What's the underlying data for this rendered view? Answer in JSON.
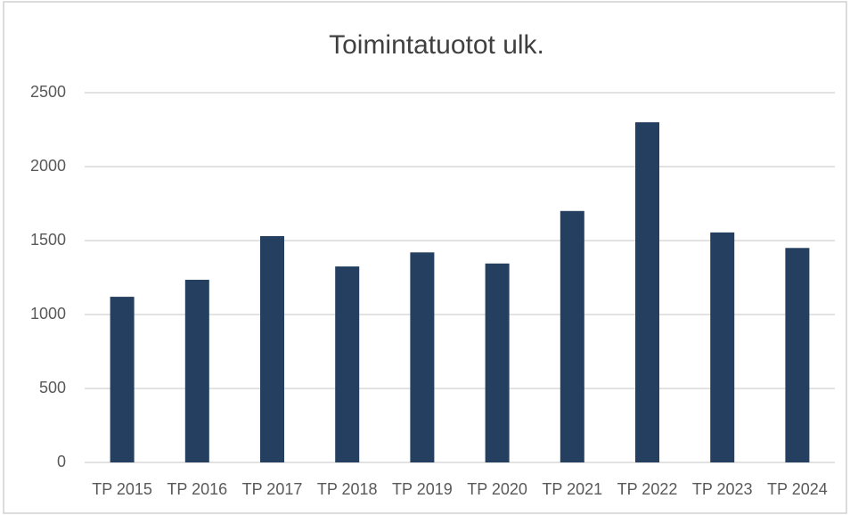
{
  "chart_data": {
    "type": "bar",
    "title": "Toimintatuotot ulk.",
    "categories": [
      "TP 2015",
      "TP 2016",
      "TP 2017",
      "TP 2018",
      "TP 2019",
      "TP 2020",
      "TP 2021",
      "TP 2022",
      "TP 2023",
      "TP 2024"
    ],
    "values": [
      1120,
      1235,
      1530,
      1325,
      1420,
      1345,
      1700,
      2300,
      1555,
      1450
    ],
    "color": "#243f60",
    "ylim": [
      0,
      2500
    ],
    "yticks": [
      0,
      500,
      1000,
      1500,
      2000,
      2500
    ],
    "grid": true
  }
}
